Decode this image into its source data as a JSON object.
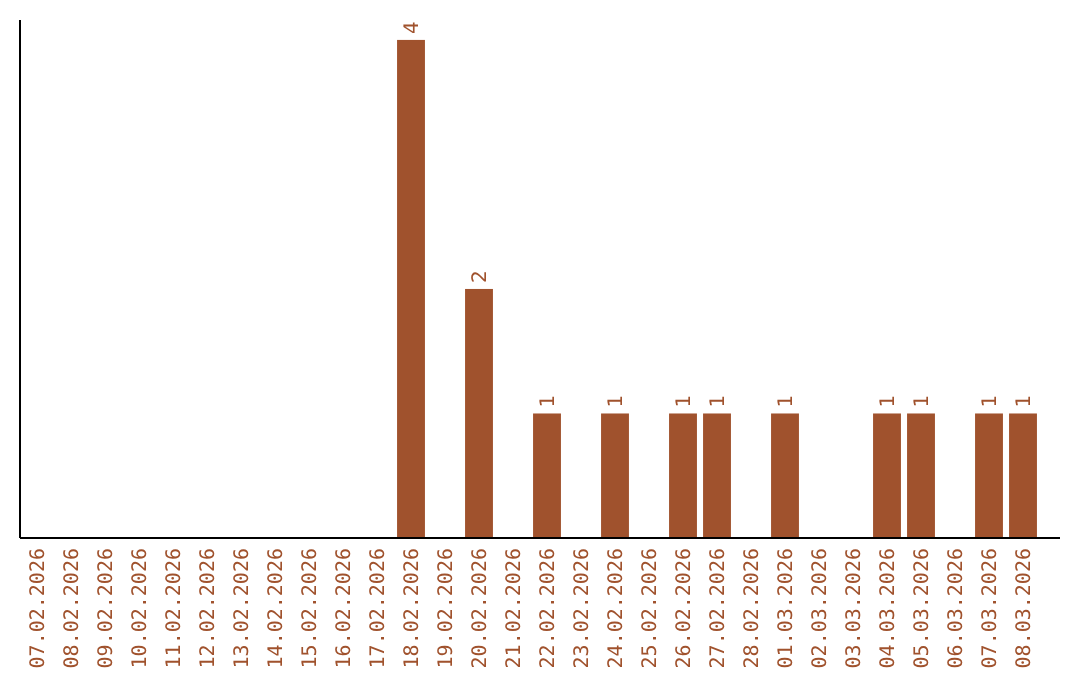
{
  "chart_data": {
    "type": "bar",
    "color": "#a0522d",
    "categories": [
      "07.02.2026",
      "08.02.2026",
      "09.02.2026",
      "10.02.2026",
      "11.02.2026",
      "12.02.2026",
      "13.02.2026",
      "14.02.2026",
      "15.02.2026",
      "16.02.2026",
      "17.02.2026",
      "18.02.2026",
      "19.02.2026",
      "20.02.2026",
      "21.02.2026",
      "22.02.2026",
      "23.02.2026",
      "24.02.2026",
      "25.02.2026",
      "26.02.2026",
      "27.02.2026",
      "28.02.2026",
      "01.03.2026",
      "02.03.2026",
      "03.03.2026",
      "04.03.2026",
      "05.03.2026",
      "06.03.2026",
      "07.03.2026",
      "08.03.2026"
    ],
    "values": [
      0,
      0,
      0,
      0,
      0,
      0,
      0,
      0,
      0,
      0,
      0,
      4,
      0,
      2,
      0,
      1,
      0,
      1,
      0,
      1,
      1,
      0,
      1,
      0,
      0,
      1,
      1,
      0,
      1,
      1
    ],
    "value_labels": [
      null,
      null,
      null,
      null,
      null,
      null,
      null,
      null,
      null,
      null,
      null,
      "4",
      null,
      "2",
      null,
      "1",
      null,
      "1",
      null,
      "1",
      "1",
      null,
      "1",
      null,
      null,
      "1",
      "1",
      null,
      "1",
      "1"
    ]
  }
}
